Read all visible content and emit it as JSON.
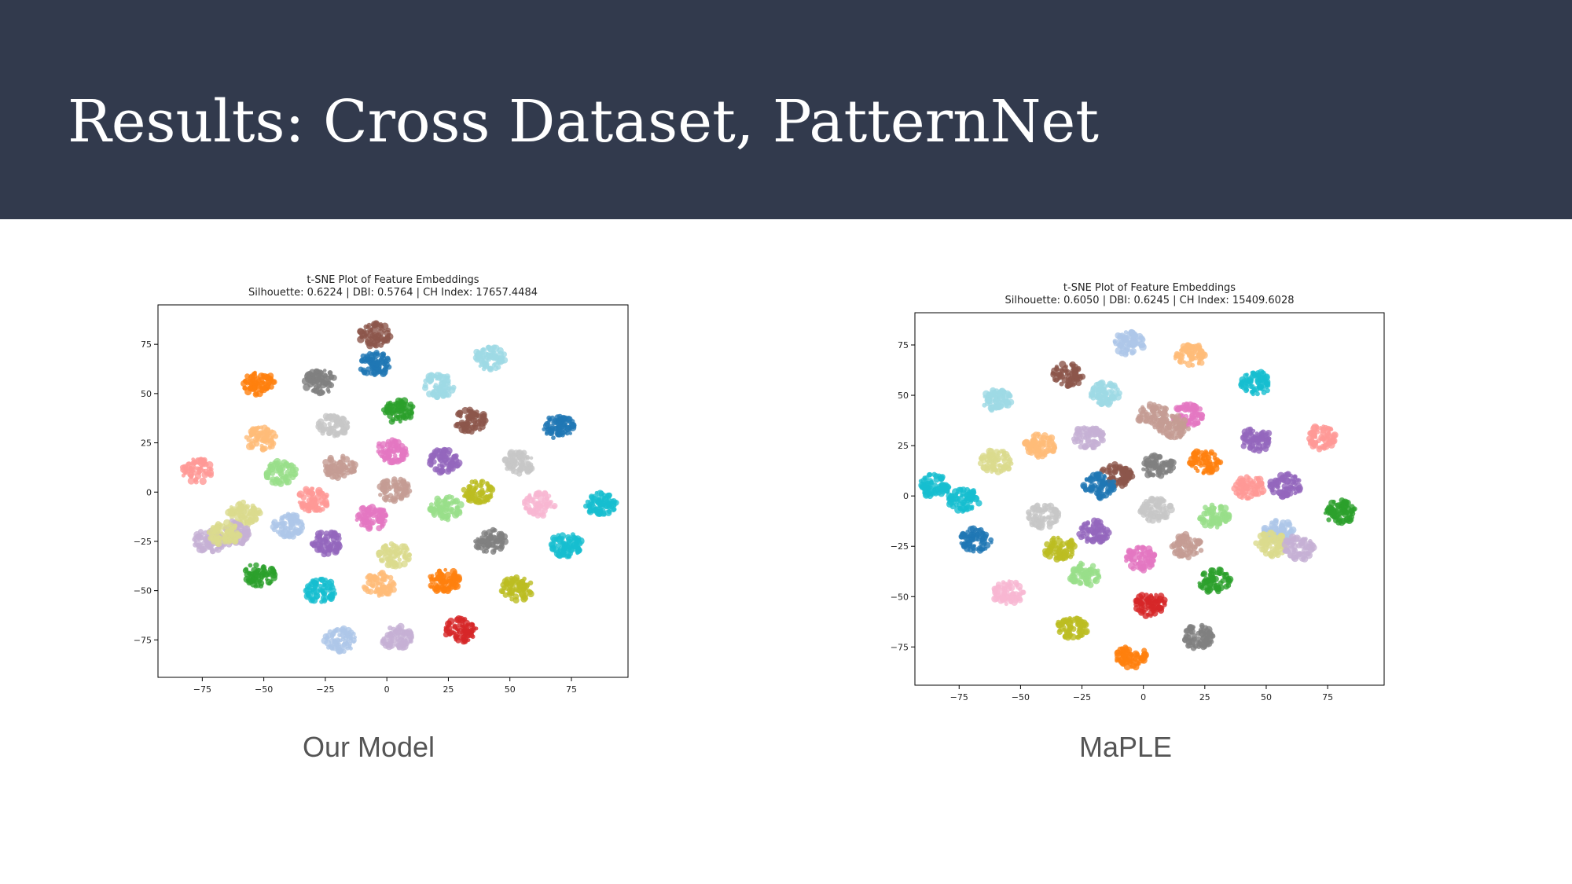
{
  "slide": {
    "title": "Results: Cross Dataset, PatternNet",
    "captions": [
      "Our Model",
      "MaPLE"
    ]
  },
  "colors": {
    "banner": "#323a4d",
    "title_text": "#ffffff",
    "caption_text": "#555555"
  },
  "chart_data": [
    {
      "type": "scatter",
      "title": "t-SNE Plot of Feature Embeddings",
      "subtitle": "Silhouette: 0.6224 | DBI: 0.5764 | CH Index: 17657.4484",
      "xlabel": "",
      "ylabel": "",
      "xlim": [
        -93,
        98
      ],
      "ylim": [
        -94,
        95
      ],
      "xticks": [
        -75,
        -50,
        -25,
        0,
        25,
        50,
        75
      ],
      "yticks": [
        75,
        50,
        25,
        0,
        -25,
        -50,
        -75
      ],
      "grid": false,
      "clusters": [
        {
          "x": -5,
          "y": 80,
          "color": "#8c564b"
        },
        {
          "x": -5,
          "y": 65,
          "color": "#1f77b4"
        },
        {
          "x": -27,
          "y": 56,
          "color": "#7f7f7f"
        },
        {
          "x": -52,
          "y": 55,
          "color": "#ff7f0e"
        },
        {
          "x": 42,
          "y": 68,
          "color": "#9edae5"
        },
        {
          "x": 21,
          "y": 54,
          "color": "#9edae5"
        },
        {
          "x": 5,
          "y": 41,
          "color": "#2ca02c"
        },
        {
          "x": -22,
          "y": 34,
          "color": "#c7c7c7"
        },
        {
          "x": 34,
          "y": 36,
          "color": "#8c564b"
        },
        {
          "x": 70,
          "y": 33,
          "color": "#1f77b4"
        },
        {
          "x": -51,
          "y": 27,
          "color": "#ffbb78"
        },
        {
          "x": 2,
          "y": 21,
          "color": "#e377c2"
        },
        {
          "x": -19,
          "y": 13,
          "color": "#c49c94"
        },
        {
          "x": 23,
          "y": 16,
          "color": "#9467bd"
        },
        {
          "x": 54,
          "y": 15,
          "color": "#c7c7c7"
        },
        {
          "x": -77,
          "y": 11,
          "color": "#ff9896"
        },
        {
          "x": -43,
          "y": 10,
          "color": "#98df8a"
        },
        {
          "x": 37,
          "y": 0,
          "color": "#bcbd22"
        },
        {
          "x": 3,
          "y": 1,
          "color": "#c49c94"
        },
        {
          "x": -30,
          "y": -4,
          "color": "#ff9896"
        },
        {
          "x": 24,
          "y": -8,
          "color": "#98df8a"
        },
        {
          "x": 62,
          "y": -6,
          "color": "#f7b6d2"
        },
        {
          "x": 87,
          "y": -6,
          "color": "#17becf"
        },
        {
          "x": -58,
          "y": -11,
          "color": "#dbdb8d"
        },
        {
          "x": -6,
          "y": -13,
          "color": "#e377c2"
        },
        {
          "x": -62,
          "y": -21,
          "color": "#c5b0d5"
        },
        {
          "x": -40,
          "y": -17,
          "color": "#aec7e8"
        },
        {
          "x": -24,
          "y": -26,
          "color": "#9467bd"
        },
        {
          "x": 3,
          "y": -32,
          "color": "#dbdb8d"
        },
        {
          "x": 42,
          "y": -25,
          "color": "#7f7f7f"
        },
        {
          "x": 73,
          "y": -27,
          "color": "#17becf"
        },
        {
          "x": -52,
          "y": -42,
          "color": "#2ca02c"
        },
        {
          "x": -27,
          "y": -50,
          "color": "#17becf"
        },
        {
          "x": -3,
          "y": -47,
          "color": "#ffbb78"
        },
        {
          "x": 23,
          "y": -45,
          "color": "#ff7f0e"
        },
        {
          "x": 53,
          "y": -49,
          "color": "#bcbd22"
        },
        {
          "x": -19,
          "y": -75,
          "color": "#aec7e8"
        },
        {
          "x": 4,
          "y": -74,
          "color": "#c5b0d5"
        },
        {
          "x": 30,
          "y": -70,
          "color": "#d62728"
        },
        {
          "x": -72,
          "y": -25,
          "color": "#c5b0d5"
        },
        {
          "x": -66,
          "y": -21,
          "color": "#dbdb8d"
        }
      ]
    },
    {
      "type": "scatter",
      "title": "t-SNE Plot of Feature Embeddings",
      "subtitle": "Silhouette: 0.6050 | DBI: 0.6245 | CH Index: 15409.6028",
      "xlabel": "",
      "ylabel": "",
      "xlim": [
        -93,
        98
      ],
      "ylim": [
        -94,
        91
      ],
      "xticks": [
        -75,
        -50,
        -25,
        0,
        25,
        50,
        75
      ],
      "yticks": [
        75,
        50,
        25,
        0,
        -25,
        -50,
        -75
      ],
      "grid": false,
      "clusters": [
        {
          "x": -6,
          "y": 76,
          "color": "#aec7e8"
        },
        {
          "x": 19,
          "y": 70,
          "color": "#ffbb78"
        },
        {
          "x": -31,
          "y": 60,
          "color": "#8c564b"
        },
        {
          "x": 46,
          "y": 56,
          "color": "#17becf"
        },
        {
          "x": -60,
          "y": 48,
          "color": "#9edae5"
        },
        {
          "x": -16,
          "y": 51,
          "color": "#9edae5"
        },
        {
          "x": 4,
          "y": 40,
          "color": "#c49c94"
        },
        {
          "x": 18,
          "y": 40,
          "color": "#e377c2"
        },
        {
          "x": 12,
          "y": 34,
          "color": "#c49c94"
        },
        {
          "x": -22,
          "y": 29,
          "color": "#c5b0d5"
        },
        {
          "x": 46,
          "y": 28,
          "color": "#9467bd"
        },
        {
          "x": 72,
          "y": 29,
          "color": "#ff9896"
        },
        {
          "x": -42,
          "y": 25,
          "color": "#ffbb78"
        },
        {
          "x": -60,
          "y": 17,
          "color": "#dbdb8d"
        },
        {
          "x": 25,
          "y": 17,
          "color": "#ff7f0e"
        },
        {
          "x": 6,
          "y": 15,
          "color": "#7f7f7f"
        },
        {
          "x": -11,
          "y": 10,
          "color": "#8c564b"
        },
        {
          "x": -18,
          "y": 5,
          "color": "#1f77b4"
        },
        {
          "x": -85,
          "y": 5,
          "color": "#17becf"
        },
        {
          "x": -73,
          "y": -2,
          "color": "#17becf"
        },
        {
          "x": 43,
          "y": 4,
          "color": "#ff9896"
        },
        {
          "x": 58,
          "y": 5,
          "color": "#9467bd"
        },
        {
          "x": -41,
          "y": -10,
          "color": "#c7c7c7"
        },
        {
          "x": 5,
          "y": -7,
          "color": "#c7c7c7"
        },
        {
          "x": 29,
          "y": -10,
          "color": "#98df8a"
        },
        {
          "x": 80,
          "y": -8,
          "color": "#2ca02c"
        },
        {
          "x": -20,
          "y": -18,
          "color": "#9467bd"
        },
        {
          "x": 55,
          "y": -18,
          "color": "#aec7e8"
        },
        {
          "x": -68,
          "y": -22,
          "color": "#1f77b4"
        },
        {
          "x": -34,
          "y": -26,
          "color": "#bcbd22"
        },
        {
          "x": 18,
          "y": -25,
          "color": "#c49c94"
        },
        {
          "x": 52,
          "y": -24,
          "color": "#dbdb8d"
        },
        {
          "x": 63,
          "y": -26,
          "color": "#c5b0d5"
        },
        {
          "x": -1,
          "y": -31,
          "color": "#e377c2"
        },
        {
          "x": -24,
          "y": -39,
          "color": "#98df8a"
        },
        {
          "x": 29,
          "y": -42,
          "color": "#2ca02c"
        },
        {
          "x": -55,
          "y": -48,
          "color": "#f7b6d2"
        },
        {
          "x": 3,
          "y": -54,
          "color": "#d62728"
        },
        {
          "x": -29,
          "y": -65,
          "color": "#bcbd22"
        },
        {
          "x": 22,
          "y": -70,
          "color": "#7f7f7f"
        },
        {
          "x": -5,
          "y": -80,
          "color": "#ff7f0e"
        }
      ]
    }
  ]
}
